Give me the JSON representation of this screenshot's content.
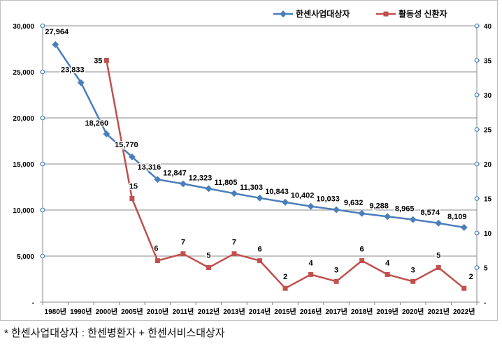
{
  "chart_data": {
    "type": "line",
    "categories": [
      "1980년",
      "1990년",
      "2000년",
      "2005년",
      "2010년",
      "2011년",
      "2012년",
      "2013년",
      "2014년",
      "2015년",
      "2016년",
      "2017년",
      "2018년",
      "2019년",
      "2020년",
      "2021년",
      "2022년"
    ],
    "series": [
      {
        "name": "한센사업대상자",
        "axis": "left",
        "color": "#4a7ebb",
        "values": [
          27964,
          23833,
          18260,
          15770,
          13316,
          12847,
          12323,
          11805,
          11303,
          10843,
          10402,
          10033,
          9632,
          9288,
          8965,
          8574,
          8109
        ],
        "labels": [
          "27,964",
          "23,833",
          "18,260",
          "15,770",
          "13,316",
          "12,847",
          "12,323",
          "11,805",
          "11,303",
          "10,843",
          "10,402",
          "10,033",
          "9,632",
          "9,288",
          "8,965",
          "8,574",
          "8,109"
        ]
      },
      {
        "name": "활동성 신환자",
        "axis": "right",
        "color": "#c0504d",
        "values": [
          null,
          null,
          35,
          15,
          6,
          7,
          5,
          7,
          6,
          2,
          4,
          3,
          6,
          4,
          3,
          5,
          2
        ],
        "labels": [
          null,
          null,
          "35",
          "15",
          "6",
          "7",
          "5",
          "7",
          "6",
          "2",
          "4",
          "3",
          "6",
          "4",
          "3",
          "5",
          "2"
        ]
      }
    ],
    "left_axis": {
      "min": 0,
      "max": 30000,
      "step": 5000,
      "tick_labels": [
        "-",
        "5,000",
        "10,000",
        "15,000",
        "20,000",
        "25,000",
        "30,000"
      ]
    },
    "right_axis": {
      "min": 0,
      "max": 40,
      "step": 5,
      "tick_labels": [
        "-",
        "5",
        "10",
        "15",
        "20",
        "25",
        "30",
        "35",
        "40"
      ]
    },
    "grid": true,
    "legend_position": "top-right"
  },
  "footnote": "*  한센사업대상자  :  한센병환자  +  한센서비스대상자"
}
